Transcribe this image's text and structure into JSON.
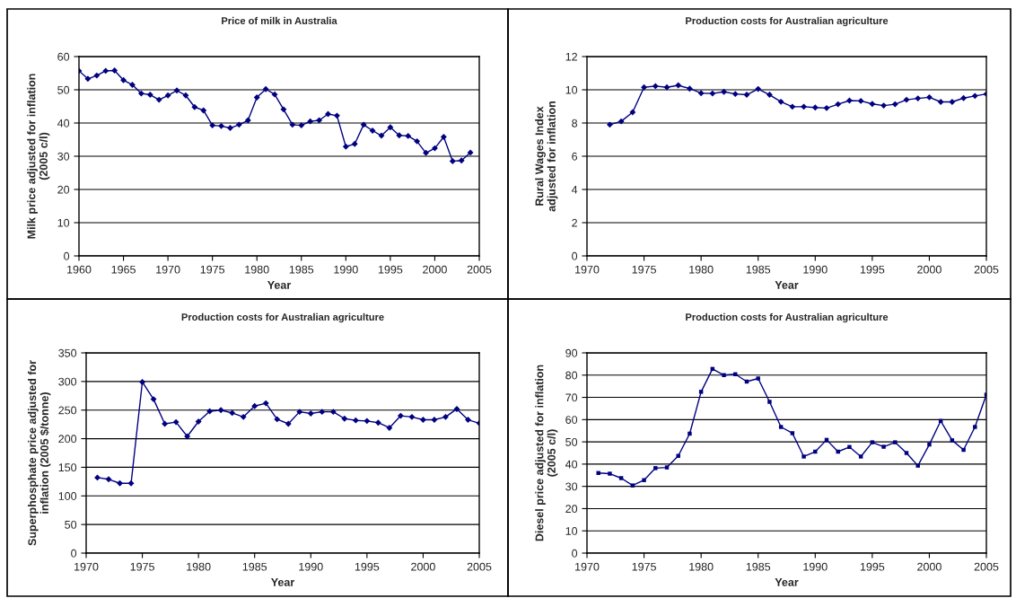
{
  "chart_data": [
    {
      "type": "line",
      "title": "Price of milk in Australia",
      "xlabel": "Year",
      "ylabel": "Milk price adjusted for inflation\n(2005 c/l)",
      "color": "#000080",
      "marker": "diamond",
      "line_style": "solid",
      "grid": "y",
      "xlim": [
        1960,
        2005
      ],
      "xticks": [
        1960,
        1965,
        1970,
        1975,
        1980,
        1985,
        1990,
        1995,
        2000,
        2005
      ],
      "ylim": [
        0,
        60
      ],
      "yticks": [
        0,
        10,
        20,
        30,
        40,
        50,
        60
      ],
      "x": [
        1960,
        1961,
        1962,
        1963,
        1964,
        1965,
        1966,
        1967,
        1968,
        1969,
        1970,
        1971,
        1972,
        1973,
        1974,
        1975,
        1976,
        1977,
        1978,
        1979,
        1980,
        1981,
        1982,
        1983,
        1984,
        1985,
        1986,
        1987,
        1988,
        1989,
        1990,
        1991,
        1992,
        1993,
        1994,
        1995,
        1996,
        1997,
        1998,
        1999,
        2000,
        2001,
        2002,
        2003,
        2004
      ],
      "values": [
        55.7,
        53.3,
        54.3,
        55.7,
        55.8,
        52.9,
        51.5,
        48.9,
        48.5,
        47.0,
        48.3,
        49.8,
        48.3,
        44.8,
        43.8,
        39.3,
        39.1,
        38.5,
        39.5,
        40.8,
        47.7,
        50.2,
        48.6,
        44.1,
        39.5,
        39.3,
        40.5,
        40.8,
        42.7,
        42.2,
        32.9,
        33.7,
        39.5,
        37.7,
        36.2,
        38.7,
        36.3,
        36.1,
        34.5,
        31.0,
        32.4,
        35.8,
        28.5,
        28.7,
        31.1
      ]
    },
    {
      "type": "line",
      "title": "Production costs for Australian agriculture",
      "xlabel": "Year",
      "ylabel": "Rural Wages Index\nadjusted for inflation",
      "color": "#000080",
      "marker": "diamond",
      "line_style": "solid",
      "grid": "y",
      "xlim": [
        1970,
        2005
      ],
      "xticks": [
        1970,
        1975,
        1980,
        1985,
        1990,
        1995,
        2000,
        2005
      ],
      "ylim": [
        0,
        12
      ],
      "yticks": [
        0,
        2,
        4,
        6,
        8,
        10,
        12
      ],
      "x": [
        1972,
        1973,
        1974,
        1975,
        1976,
        1977,
        1978,
        1979,
        1980,
        1981,
        1982,
        1983,
        1984,
        1985,
        1986,
        1987,
        1988,
        1989,
        1990,
        1991,
        1992,
        1993,
        1994,
        1995,
        1996,
        1997,
        1998,
        1999,
        2000,
        2001,
        2002,
        2003,
        2004,
        2005
      ],
      "values": [
        7.9,
        8.1,
        8.65,
        10.15,
        10.22,
        10.15,
        10.27,
        10.07,
        9.8,
        9.78,
        9.88,
        9.75,
        9.7,
        10.05,
        9.7,
        9.28,
        8.98,
        8.98,
        8.93,
        8.9,
        9.13,
        9.35,
        9.33,
        9.15,
        9.05,
        9.13,
        9.4,
        9.48,
        9.55,
        9.27,
        9.27,
        9.5,
        9.63,
        9.75
      ]
    },
    {
      "type": "line",
      "title": "Production costs for Australian agriculture",
      "xlabel": "Year",
      "ylabel": "Superphosphate price adjusted for\ninflation (2005 $/tonne)",
      "color": "#000080",
      "marker": "diamond",
      "line_style": "solid",
      "grid": "y",
      "xlim": [
        1970,
        2005
      ],
      "xticks": [
        1970,
        1975,
        1980,
        1985,
        1990,
        1995,
        2000,
        2005
      ],
      "ylim": [
        0,
        350
      ],
      "yticks": [
        0,
        50,
        100,
        150,
        200,
        250,
        300,
        350
      ],
      "x": [
        1971,
        1972,
        1973,
        1974,
        1975,
        1976,
        1977,
        1978,
        1979,
        1980,
        1981,
        1982,
        1983,
        1984,
        1985,
        1986,
        1987,
        1988,
        1989,
        1990,
        1991,
        1992,
        1993,
        1994,
        1995,
        1996,
        1997,
        1998,
        1999,
        2000,
        2001,
        2002,
        2003,
        2004,
        2005
      ],
      "values": [
        132,
        129,
        122,
        122,
        299,
        269,
        226,
        229,
        204,
        230,
        248,
        250,
        245,
        238,
        257,
        262,
        234,
        226,
        247,
        244,
        247,
        247,
        235,
        232,
        231,
        228,
        219,
        240,
        238,
        233,
        233,
        238,
        252,
        233,
        227
      ]
    },
    {
      "type": "line",
      "title": "Production costs for Australian agriculture",
      "xlabel": "Year",
      "ylabel": "Diesel price adjusted for inflation\n(2005 c/l)",
      "color": "#000080",
      "marker": "square",
      "line_style": "solid",
      "grid": "y",
      "xlim": [
        1970,
        2005
      ],
      "xticks": [
        1970,
        1975,
        1980,
        1985,
        1990,
        1995,
        2000,
        2005
      ],
      "ylim": [
        0,
        90
      ],
      "yticks": [
        0,
        10,
        20,
        30,
        40,
        50,
        60,
        70,
        80,
        90
      ],
      "x": [
        1971,
        1972,
        1973,
        1974,
        1975,
        1976,
        1977,
        1978,
        1979,
        1980,
        1981,
        1982,
        1983,
        1984,
        1985,
        1986,
        1987,
        1988,
        1989,
        1990,
        1991,
        1992,
        1993,
        1994,
        1995,
        1996,
        1997,
        1998,
        1999,
        2000,
        2001,
        2002,
        2003,
        2004,
        2005
      ],
      "values": [
        36,
        35.7,
        33.7,
        30.4,
        32.8,
        38.2,
        38.5,
        43.7,
        53.7,
        72.5,
        82.8,
        80,
        80.4,
        77.1,
        78.5,
        68,
        56.7,
        53.9,
        43.4,
        45.6,
        50.9,
        45.6,
        47.7,
        43.4,
        49.8,
        47.8,
        49.8,
        45,
        39.3,
        48.8,
        59.4,
        50.7,
        46.4,
        56.7,
        71.2
      ]
    }
  ]
}
